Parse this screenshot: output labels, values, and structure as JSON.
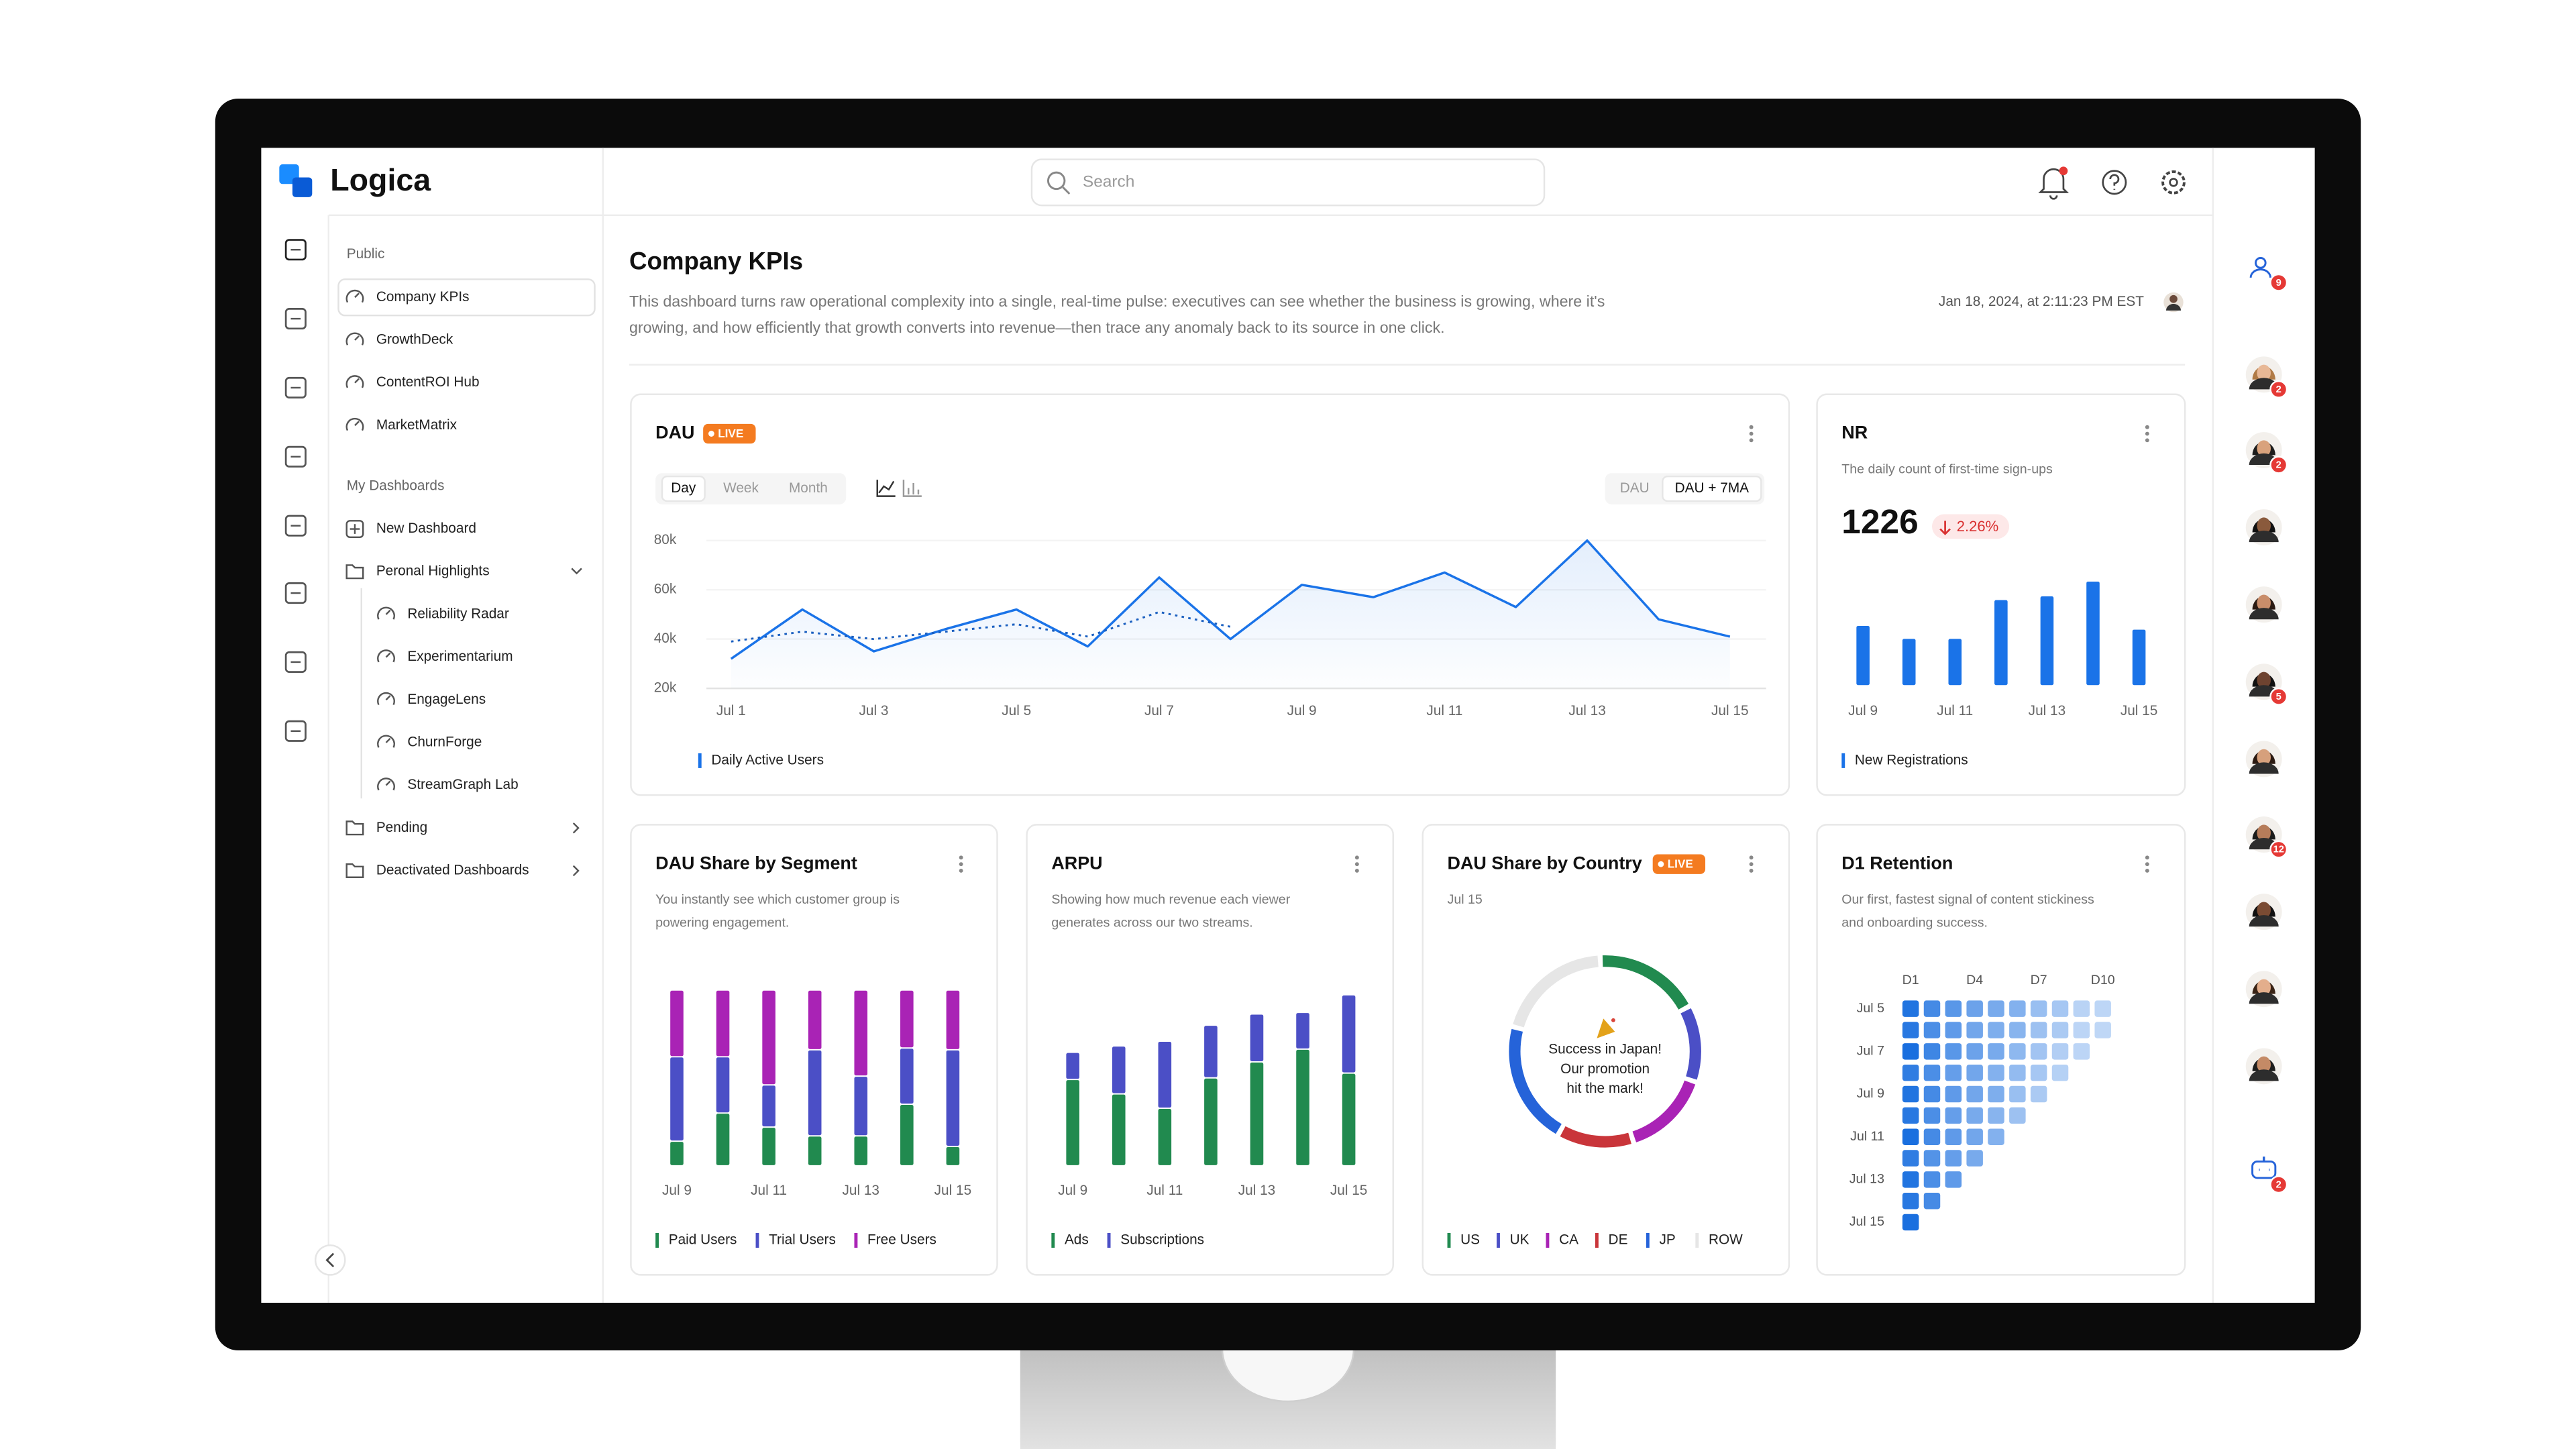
{
  "header": {
    "logo": "Logica",
    "search": "Search"
  },
  "sidebar": {
    "public_label": "Public",
    "public_items": [
      "Company KPIs",
      "GrowthDeck",
      "ContentROI Hub",
      "MarketMatrix"
    ],
    "my_label": "My Dashboards",
    "new_dashboard": "New Dashboard",
    "folder": "Peronal Highlights",
    "folder_items": [
      "Reliability Radar",
      "Experimentarium",
      "EngageLens",
      "ChurnForge",
      "StreamGraph Lab"
    ],
    "other_folders": [
      "Pending",
      "Deactivated Dashboards"
    ]
  },
  "page": {
    "title": "Company KPIs",
    "description": [
      "This dashboard turns raw operational complexity into a single, real-time pulse: executives can see whether the business is growing, where it's",
      "growing, and how efficiently that growth converts into revenue—then trace any anomaly back to its source in one click."
    ],
    "timestamp": "Jan 18, 2024, at 2:11:23 PM EST"
  },
  "rail_badges": [
    9,
    2,
    2,
    null,
    null,
    5,
    null,
    12,
    null,
    null,
    null,
    2
  ],
  "chart_data": [
    {
      "type": "line",
      "title": "DAU",
      "badge": "LIVE",
      "tabs": [
        "Day",
        "Week",
        "Month"
      ],
      "selected_tab": 0,
      "toggles": [
        "DAU",
        "DAU + 7MA"
      ],
      "selected_toggle": 1,
      "categories": [
        "Jul 1",
        null,
        "Jul 3",
        null,
        "Jul 5",
        null,
        "Jul 7",
        null,
        "Jul 9",
        null,
        "Jul 11",
        null,
        "Jul 13",
        null,
        "Jul 15"
      ],
      "series": [
        {
          "name": "Daily Active Users",
          "color": "#1a73e8",
          "values": [
            32000,
            52000,
            35000,
            44000,
            52000,
            37000,
            65000,
            40000,
            62000,
            57000,
            67000,
            53000,
            80000,
            48000,
            41000
          ]
        },
        {
          "color": "#1a5fc0",
          "style": "dotted",
          "values": [
            39000,
            43000,
            40000,
            43000,
            46000,
            41000,
            51000,
            45000,
            null,
            null,
            null,
            null,
            null,
            null,
            null
          ]
        }
      ],
      "ylim": [
        20000,
        80000
      ],
      "yticks": [
        {
          "value": 20000,
          "label": "20k"
        },
        {
          "value": 40000,
          "label": "40k"
        },
        {
          "value": 60000,
          "label": "60k"
        },
        {
          "value": 80000,
          "label": "80k"
        }
      ],
      "grid": true
    },
    {
      "type": "bar",
      "title": "NR",
      "subtitle": "The daily count of first-time sign-ups",
      "kpi": 1226,
      "change": -2.26,
      "change_label": "2.26%",
      "categories": [
        "Jul 9",
        null,
        "Jul 11",
        null,
        "Jul 13",
        null,
        "Jul 15"
      ],
      "series": [
        {
          "name": "New Registrations",
          "color": "#1a73e8",
          "values": [
            160,
            125,
            125,
            230,
            240,
            280,
            150
          ]
        }
      ],
      "ylim": [
        0,
        300
      ]
    },
    {
      "type": "stacked_bar",
      "title": "DAU Share by Segment",
      "subtitle": [
        "You instantly see which customer group is",
        "powering engagement."
      ],
      "categories": [
        "Jul 9",
        null,
        "Jul 11",
        null,
        "Jul 13",
        null,
        "Jul 15"
      ],
      "series": [
        {
          "name": "Paid Users",
          "color": "#218a4f",
          "values": [
            14,
            30,
            22,
            17,
            17,
            35,
            11
          ]
        },
        {
          "name": "Trial Users",
          "color": "#4b4fc6",
          "values": [
            48,
            32,
            24,
            49,
            34,
            32,
            55
          ]
        },
        {
          "name": "Free Users",
          "color": "#a923b5",
          "values": [
            38,
            38,
            54,
            34,
            49,
            33,
            34
          ]
        }
      ],
      "ylim": [
        0,
        100
      ]
    },
    {
      "type": "stacked_bar",
      "title": "ARPU",
      "subtitle": [
        "Showing how much revenue each viewer",
        "generates across our two streams."
      ],
      "categories": [
        "Jul 9",
        null,
        "Jul 11",
        null,
        "Jul 13",
        null,
        "Jul 15"
      ],
      "series": [
        {
          "name": "Ads",
          "color": "#218a4f",
          "values": [
            54,
            45,
            36,
            55,
            65,
            73,
            58
          ]
        },
        {
          "name": "Subscriptions",
          "color": "#4b4fc6",
          "values": [
            17,
            30,
            42,
            33,
            30,
            23,
            49
          ]
        }
      ],
      "ylim": [
        0,
        110
      ]
    },
    {
      "type": "pie",
      "title": "DAU Share by Country",
      "badge": "LIVE",
      "subtitle": "Jul 15",
      "center_text": [
        "Success in Japan!",
        "Our promotion",
        "hit the mark!"
      ],
      "categories": [
        "US",
        "UK",
        "CA",
        "DE",
        "JP",
        "ROW"
      ],
      "values": [
        18,
        13,
        15,
        13,
        21,
        20
      ],
      "colors": [
        "#218a4f",
        "#4b4fc6",
        "#a923b5",
        "#c9353a",
        "#2563d9",
        "#e6e6e6"
      ]
    },
    {
      "type": "heatmap",
      "title": "D1 Retention",
      "subtitle": [
        "Our first, fastest signal of content stickiness",
        "and onboarding success."
      ],
      "columns": [
        "D1",
        null,
        null,
        "D4",
        null,
        null,
        "D7",
        null,
        null,
        "D10"
      ],
      "rows": [
        "Jul 5",
        null,
        "Jul 7",
        null,
        "Jul 9",
        null,
        "Jul 11",
        null,
        "Jul 13",
        null,
        "Jul 15"
      ],
      "color": "#1a6fdf",
      "values": [
        [
          46,
          41,
          38,
          35,
          33,
          31,
          27,
          24,
          19,
          17
        ],
        [
          45,
          40,
          37,
          34,
          32,
          30,
          26,
          23,
          18,
          16
        ],
        [
          47,
          42,
          38,
          35,
          33,
          29,
          25,
          21,
          18
        ],
        [
          44,
          40,
          36,
          34,
          31,
          28,
          24,
          20
        ],
        [
          46,
          41,
          37,
          34,
          32,
          27,
          23
        ],
        [
          45,
          40,
          36,
          33,
          30,
          26
        ],
        [
          47,
          41,
          37,
          34,
          31
        ],
        [
          44,
          39,
          36,
          33
        ],
        [
          46,
          40,
          37
        ],
        [
          45,
          41
        ],
        [
          47
        ]
      ]
    }
  ]
}
